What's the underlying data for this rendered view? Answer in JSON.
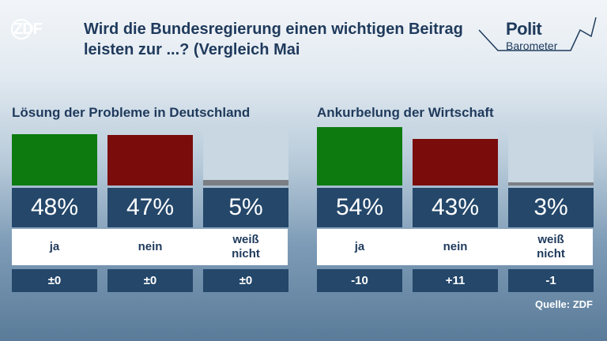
{
  "header": {
    "logo_text": "ZDF",
    "title": "Wird die Bundesregierung einen wichtigen Beitrag leisten zur ...? (Vergleich Mai",
    "brand_line1": "Polit",
    "brand_line2": "Barometer"
  },
  "colors": {
    "ja": "#0d7a10",
    "nein": "#7a0c0c",
    "weiss_nicht": "#7b7f84",
    "bar_background": "#c8d7e2",
    "box": "#24476a"
  },
  "chart_data": [
    {
      "type": "bar",
      "title": "Lösung der Probleme in Deutschland",
      "categories": [
        "ja",
        "nein",
        "weiß nicht"
      ],
      "values": [
        48,
        47,
        5
      ],
      "value_labels": [
        "48%",
        "47%",
        "5%"
      ],
      "changes": [
        "±0",
        "±0",
        "±0"
      ],
      "ylim": [
        0,
        55
      ]
    },
    {
      "type": "bar",
      "title": "Ankurbelung der Wirtschaft",
      "categories": [
        "ja",
        "nein",
        "weiß nicht"
      ],
      "values": [
        54,
        43,
        3
      ],
      "value_labels": [
        "54%",
        "43%",
        "3%"
      ],
      "changes": [
        "-10",
        "+11",
        "-1"
      ],
      "ylim": [
        0,
        55
      ]
    }
  ],
  "source": "Quelle: ZDF"
}
